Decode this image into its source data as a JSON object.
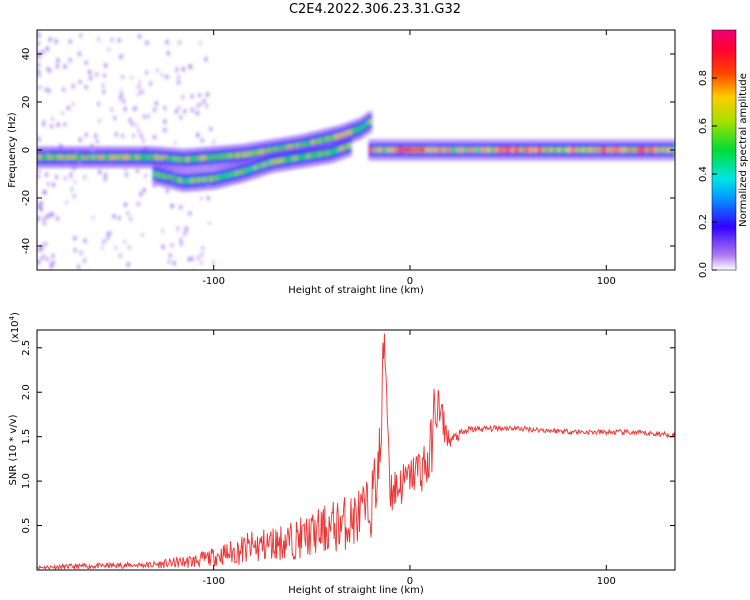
{
  "title": "C2E4.2022.306.23.31.G32",
  "colors": {
    "signal": "#ee3333",
    "frame": "#000000"
  },
  "chart_data": [
    {
      "type": "heatmap",
      "xlabel": "Height of straight line (km)",
      "ylabel": "Frequency (Hz)",
      "xlim": [
        -190,
        135
      ],
      "ylim": [
        -50,
        50
      ],
      "xticks": [
        -100,
        0,
        100
      ],
      "xtick_labels": [
        "-100",
        "0",
        "100"
      ],
      "yticks": [
        -40,
        -20,
        0,
        20,
        40
      ],
      "ytick_labels": [
        "-40",
        "-20",
        "0",
        "20",
        "40"
      ],
      "colorbar": {
        "label": "Normalized spectral amplitude",
        "range": [
          0,
          1
        ],
        "ticks": [
          0.0,
          0.2,
          0.4,
          0.6,
          0.8
        ],
        "tick_labels": [
          "0.0",
          "0.2",
          "0.4",
          "0.6",
          "0.8"
        ],
        "colormap": "rainbow (white-violet-blue-cyan-green-yellow-red-magenta)"
      },
      "tracks": [
        {
          "x": [
            -190,
            -160,
            -130,
            -115,
            -100,
            -85,
            -70,
            -55,
            -45,
            -35,
            -25,
            -20
          ],
          "y": [
            -3,
            -3,
            -3,
            -4,
            -3,
            -2,
            0,
            2,
            4,
            6,
            9,
            12
          ],
          "amplitude": 0.6
        },
        {
          "x": [
            -130,
            -115,
            -100,
            -85,
            -70,
            -55,
            -40,
            -30
          ],
          "y": [
            -10,
            -13,
            -12,
            -9,
            -5,
            -3,
            -1,
            2
          ],
          "amplitude": 0.55
        },
        {
          "x": [
            -20,
            -10,
            0,
            10,
            50,
            100,
            135
          ],
          "y": [
            0,
            0,
            0,
            0,
            0,
            0,
            0
          ],
          "amplitude": 0.7
        }
      ]
    },
    {
      "type": "line",
      "xlabel": "Height of straight line (km)",
      "ylabel": "SNR (10 * v/v)",
      "y_multiplier": "(x10^4)",
      "y_multiplier_base": "(x10",
      "y_multiplier_exp": "4",
      "y_multiplier_close": ")",
      "xlim": [
        -190,
        135
      ],
      "ylim": [
        0,
        2.7
      ],
      "xticks": [
        -100,
        0,
        100
      ],
      "xtick_labels": [
        "-100",
        "0",
        "100"
      ],
      "yticks": [
        0.5,
        1.0,
        1.5,
        2.0,
        2.5
      ],
      "ytick_labels": [
        "0.5",
        "1.0",
        "1.5",
        "2.0",
        "2.5"
      ],
      "x": [
        -190,
        -170,
        -150,
        -130,
        -110,
        -100,
        -90,
        -80,
        -70,
        -60,
        -50,
        -40,
        -30,
        -20,
        -15,
        -13,
        -10,
        -5,
        0,
        5,
        10,
        13,
        20,
        30,
        50,
        70,
        90,
        110,
        135
      ],
      "values": [
        0.03,
        0.04,
        0.05,
        0.06,
        0.1,
        0.15,
        0.2,
        0.25,
        0.3,
        0.33,
        0.4,
        0.48,
        0.55,
        0.7,
        1.3,
        2.7,
        0.9,
        0.95,
        1.05,
        1.15,
        1.2,
        1.9,
        1.45,
        1.58,
        1.6,
        1.57,
        1.55,
        1.55,
        1.52
      ],
      "spread": [
        0.02,
        0.03,
        0.03,
        0.04,
        0.08,
        0.1,
        0.15,
        0.2,
        0.2,
        0.22,
        0.25,
        0.3,
        0.32,
        0.35,
        0.5,
        0.4,
        0.3,
        0.25,
        0.2,
        0.3,
        0.35,
        0.4,
        0.08,
        0.04,
        0.03,
        0.03,
        0.03,
        0.03,
        0.03
      ]
    }
  ]
}
